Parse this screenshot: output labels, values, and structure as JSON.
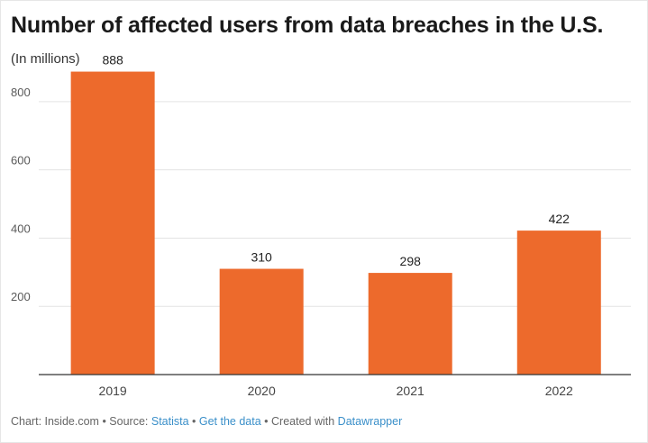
{
  "title": "Number of affected users from data breaches in the U.S.",
  "subtitle": "(In millions)",
  "chart_data": {
    "type": "bar",
    "categories": [
      "2019",
      "2020",
      "2021",
      "2022"
    ],
    "values": [
      888,
      310,
      298,
      422
    ],
    "value_labels": [
      "888",
      "310",
      "298",
      "422"
    ],
    "yticks": [
      200,
      400,
      600,
      800
    ],
    "ytick_labels": [
      "200",
      "400",
      "600",
      "800"
    ],
    "ylim": [
      0,
      900
    ],
    "grid": true,
    "bar_color": "#ed6a2c",
    "xlabel": "",
    "ylabel": ""
  },
  "footer": {
    "chart_prefix": "Chart: Inside.com",
    "sep1": " • ",
    "source_prefix": "Source: ",
    "source_link": "Statista",
    "sep2": " • ",
    "data_link": "Get the data",
    "sep3": " • ",
    "created_prefix": "Created with ",
    "created_link": "Datawrapper"
  }
}
